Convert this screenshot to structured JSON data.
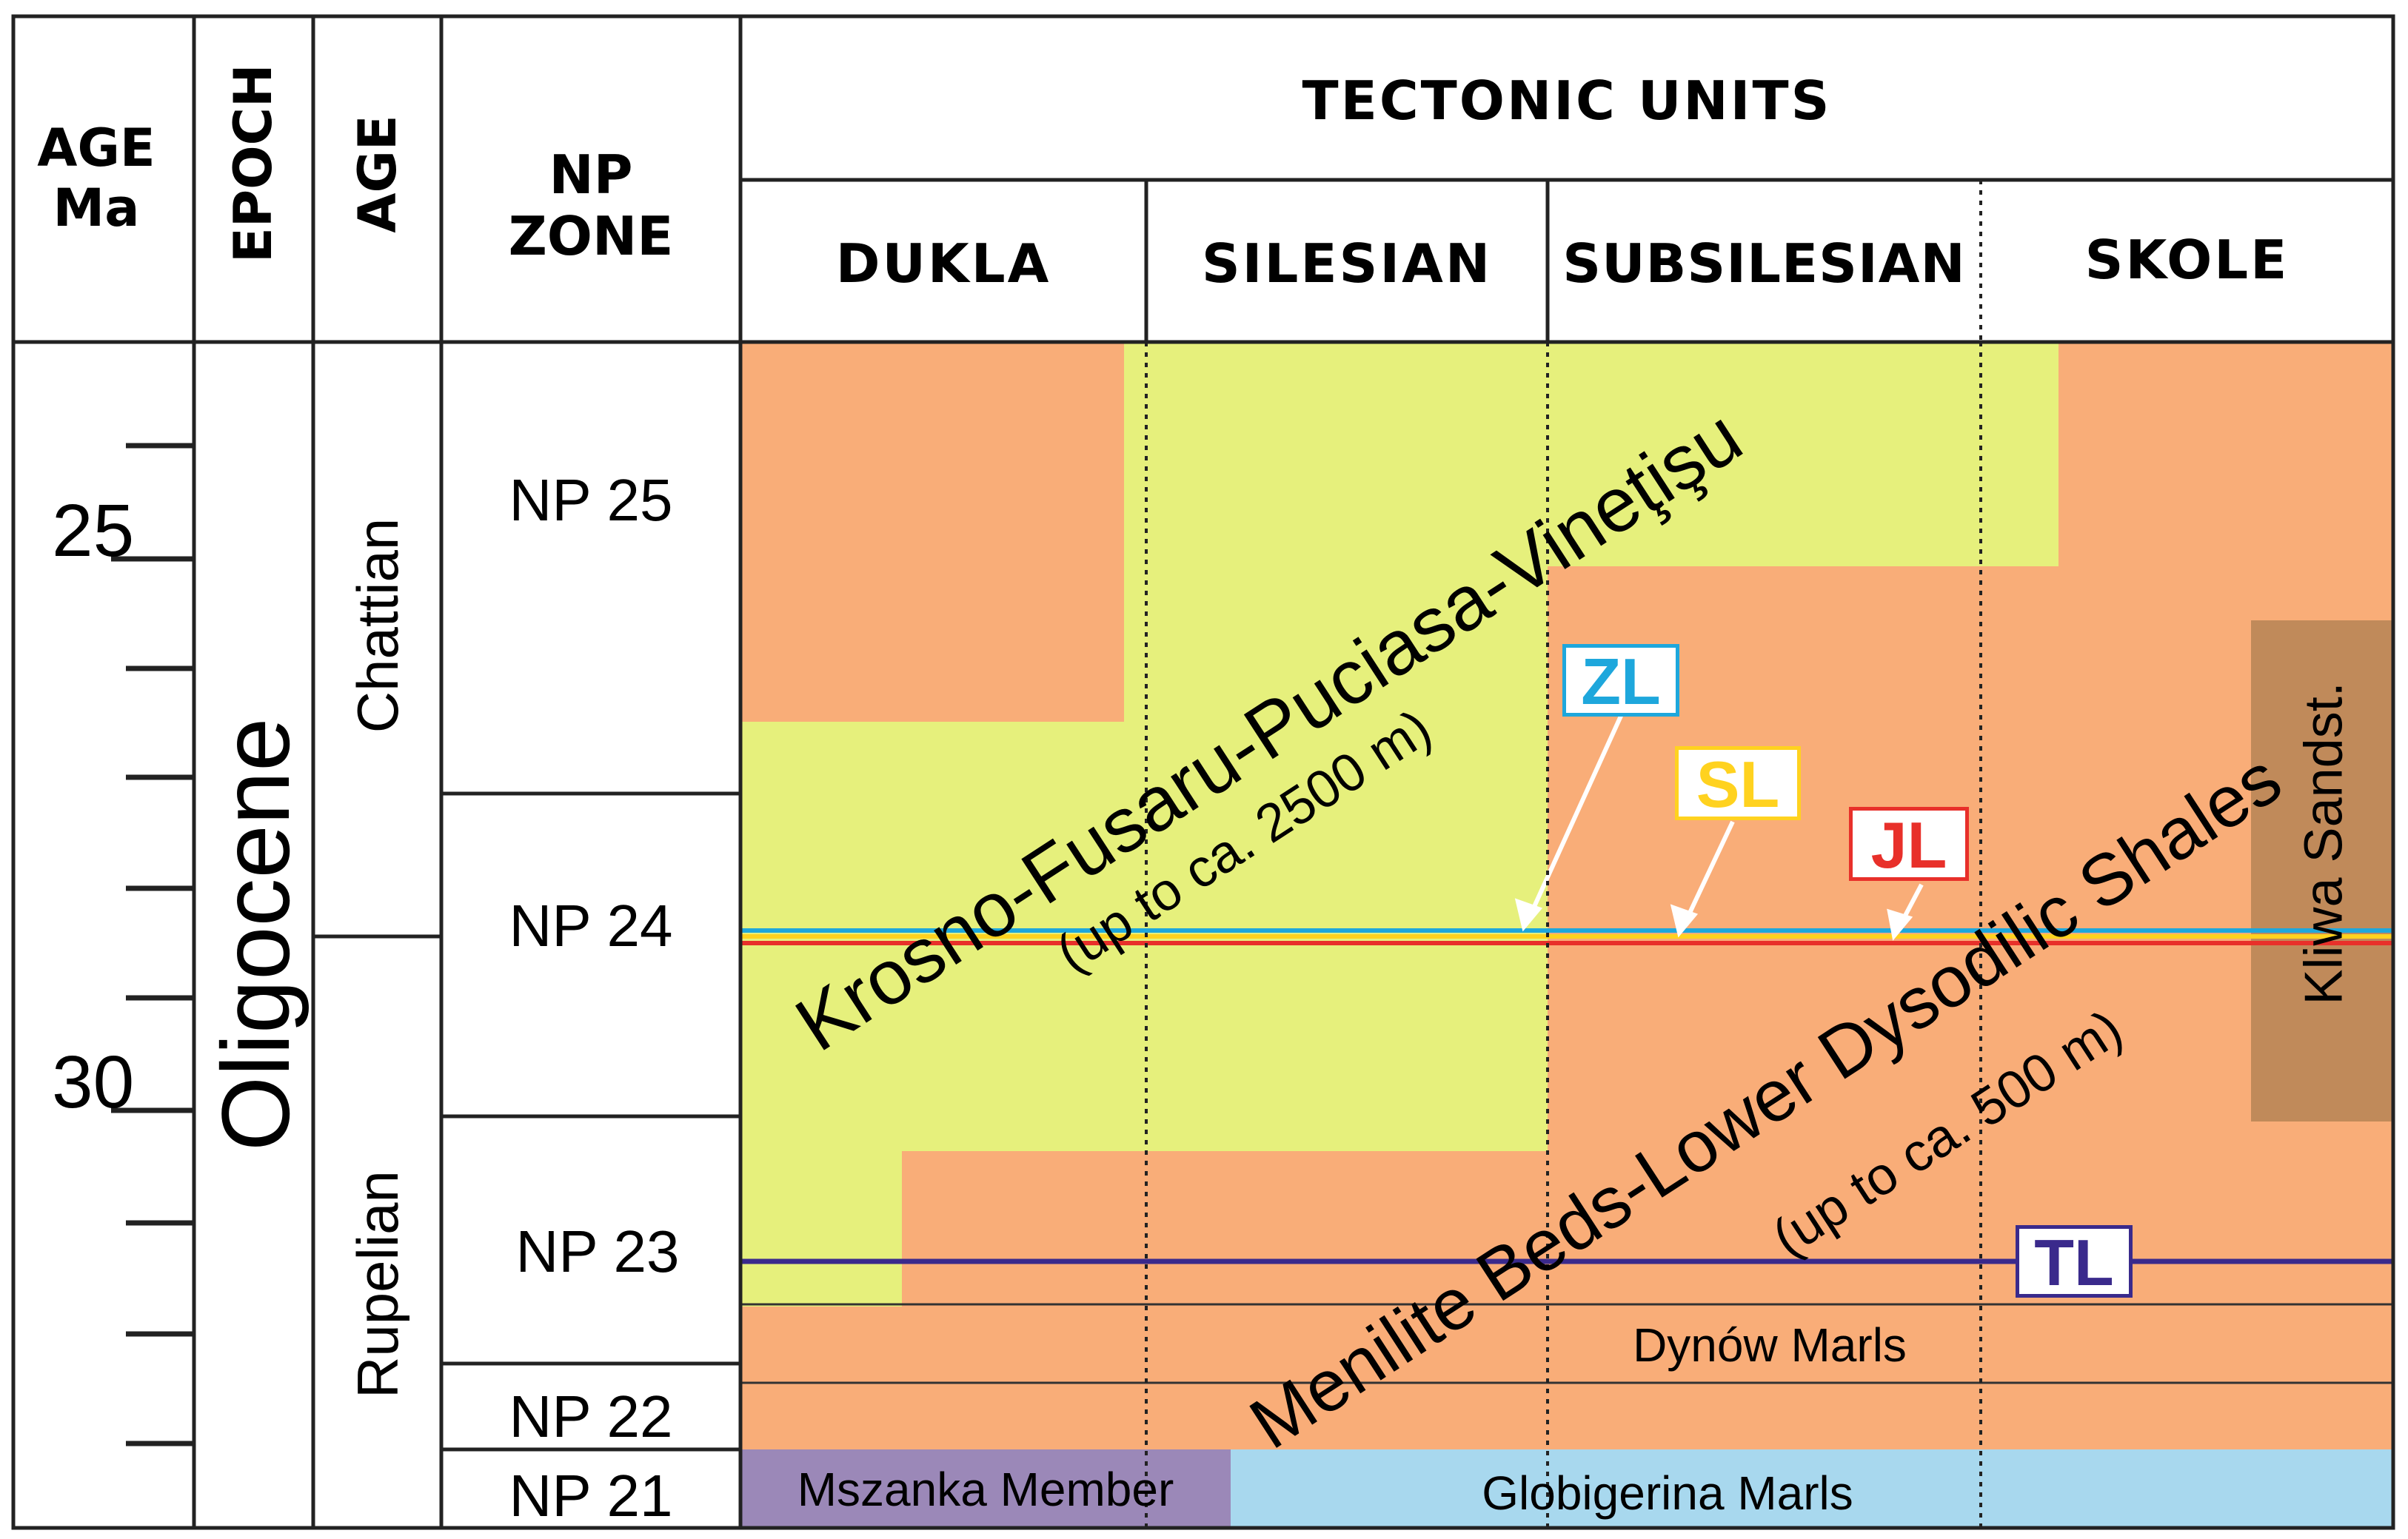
{
  "header": {
    "age_ma_line1": "AGE",
    "age_ma_line2": "Ma",
    "epoch": "EPOCH",
    "age": "AGE",
    "np_zone_line1": "NP",
    "np_zone_line2": "ZONE",
    "tectonic_units": "TECTONIC UNITS",
    "units": [
      "DUKLA",
      "SILESIAN",
      "SUBSILESIAN",
      "SKOLE"
    ]
  },
  "age_scale": {
    "ticks_labeled": [
      "25",
      "30"
    ]
  },
  "epoch": "Oligocene",
  "stages": [
    "Chattian",
    "Rupelian"
  ],
  "np_zones": [
    "NP 25",
    "NP 24",
    "NP 23",
    "NP 22",
    "NP 21"
  ],
  "formations": {
    "krosno": "Krosno-Fusaru-Puciasa-Vineţişu",
    "krosno_thickness": "(up to ca. 2500 m)",
    "menilite": "Menilite Beds-Lower Dysodilic Shales",
    "menilite_thickness": "(up to ca. 500 m)",
    "kliwa": "Kliwa Sandst.",
    "dynow": "Dynów Marls",
    "mszanka": "Mszanka Member",
    "globigerina": "Globigerina Marls"
  },
  "horizons": {
    "zl": {
      "label": "ZL",
      "color": "#1ea7dc"
    },
    "sl": {
      "label": "SL",
      "color": "#ffd21f"
    },
    "jl": {
      "label": "JL",
      "color": "#e8302a"
    },
    "tl": {
      "label": "TL",
      "color": "#3a2a8c"
    }
  },
  "colors": {
    "krosno_fill": "#e6f07c",
    "menilite_fill": "#f9ad78",
    "kliwa_fill": "#c08a5a",
    "mszanka_fill": "#9b88b8",
    "globigerina_fill": "#a8d8ee"
  }
}
